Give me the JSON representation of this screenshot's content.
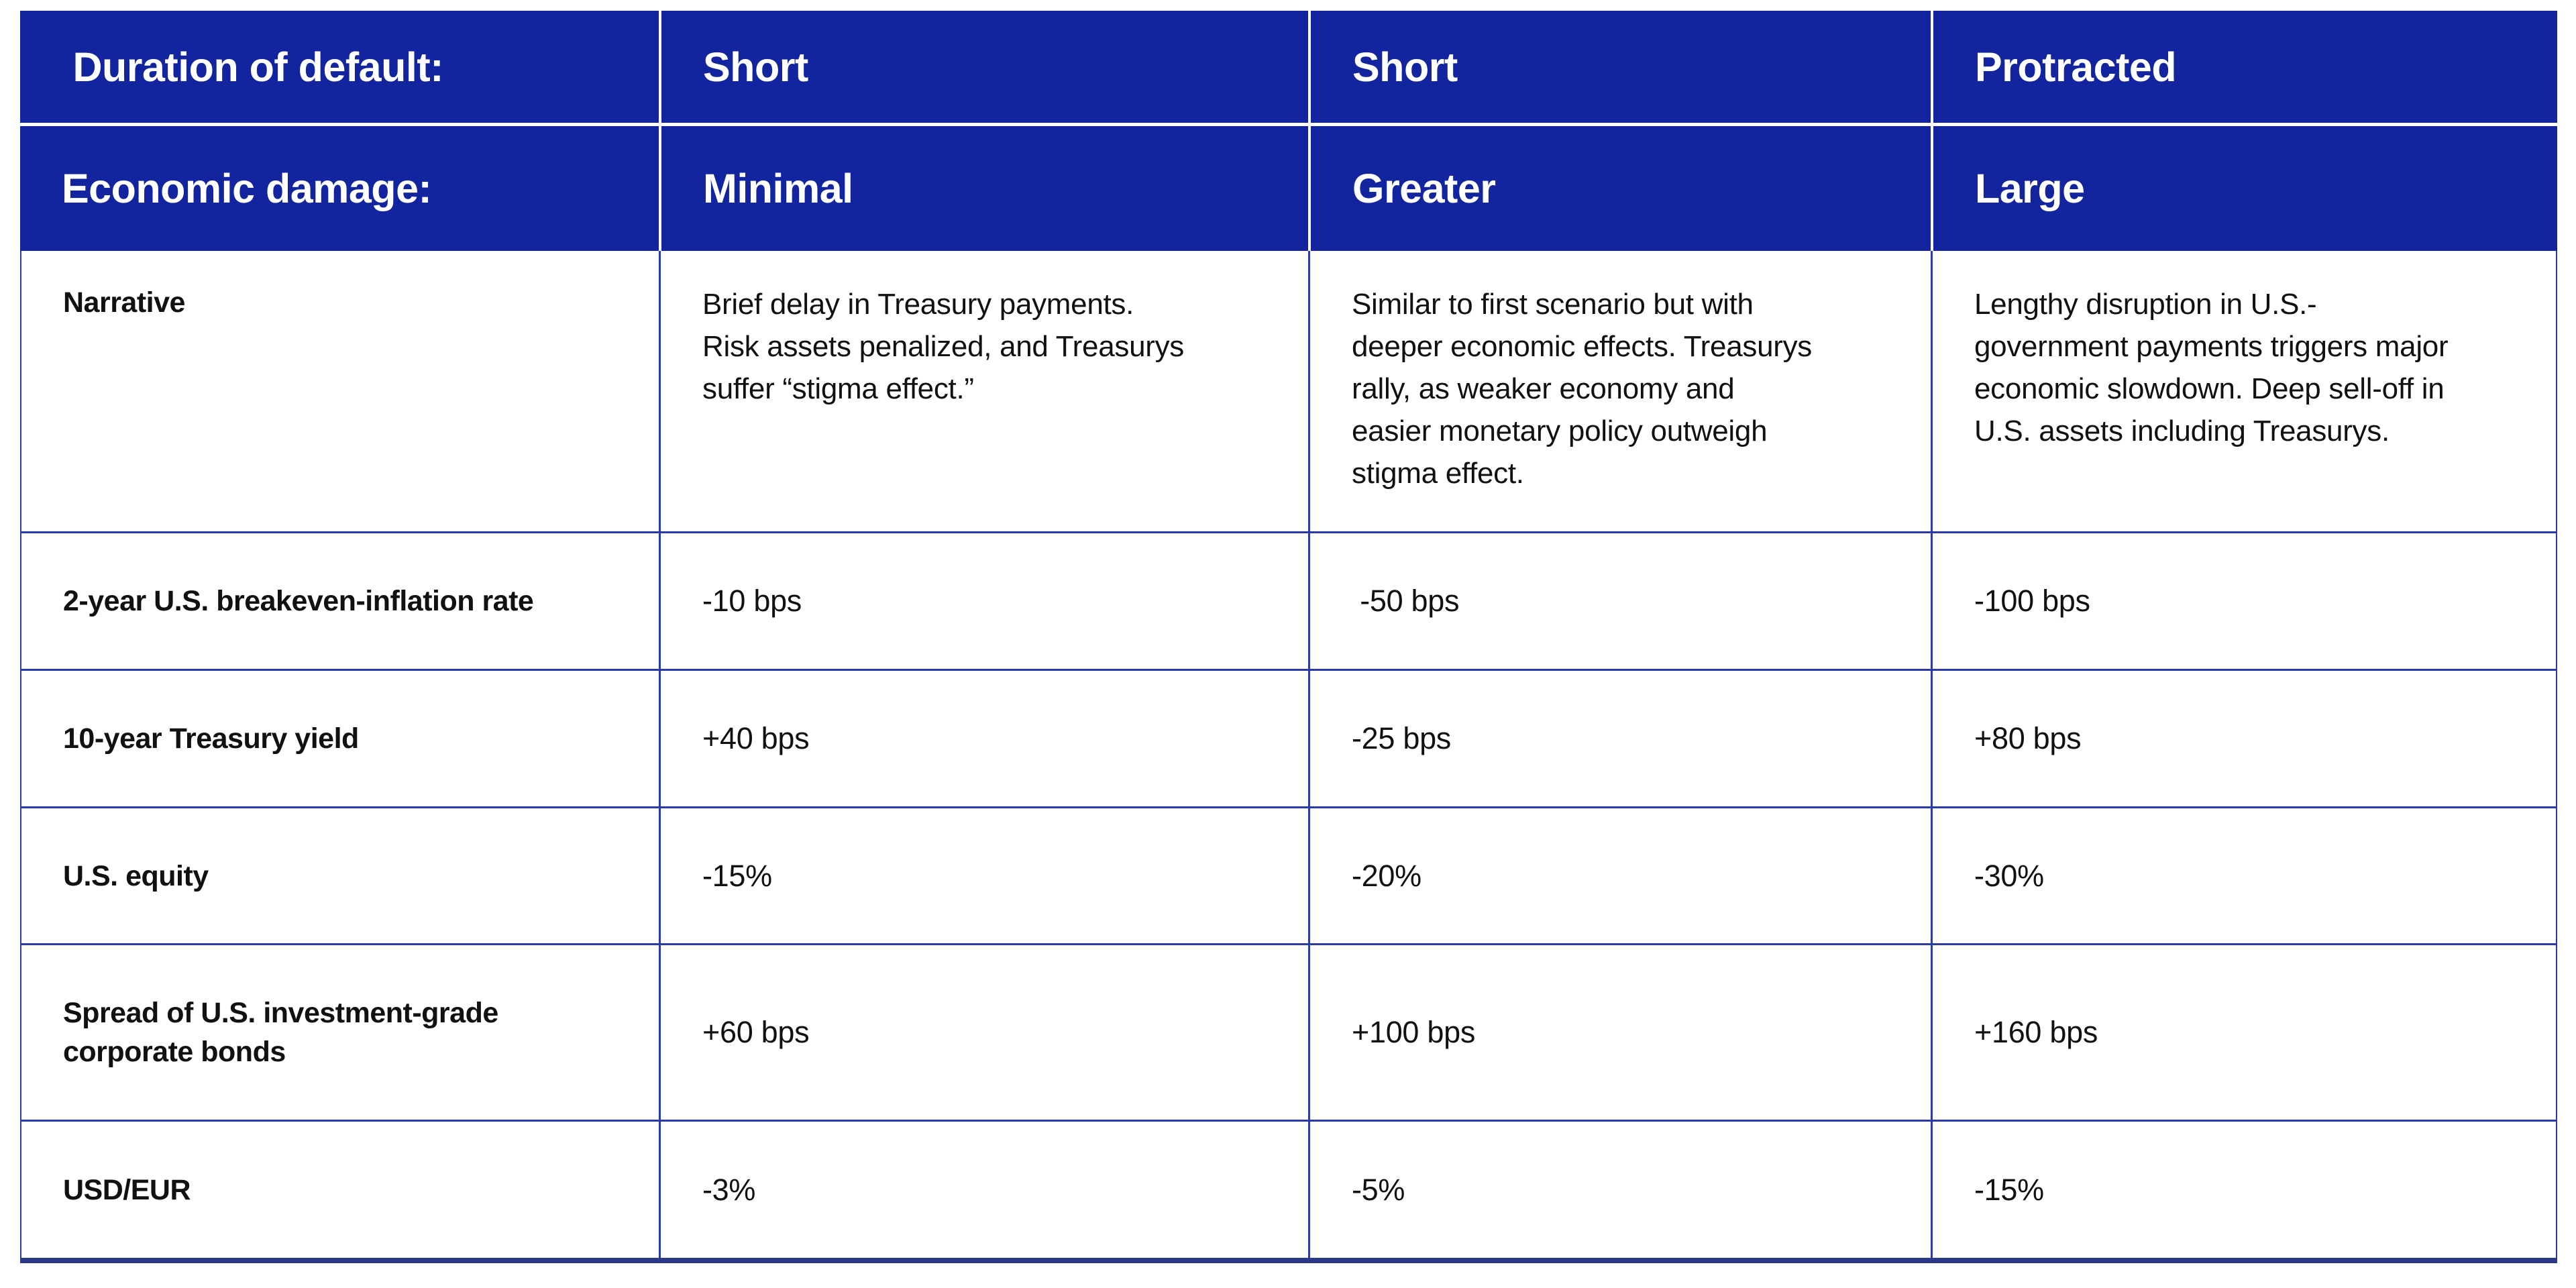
{
  "colors": {
    "header_bg": "#12259e",
    "grid_line": "#2b3aa6",
    "bottom_border": "#2b3a88",
    "header_text": "#ffffff",
    "body_text": "#111111",
    "page_bg": "#ffffff"
  },
  "chart_data": {
    "type": "table",
    "header_rows": [
      {
        "label": " Duration of default:",
        "values": [
          "Short",
          "Short",
          "Protracted"
        ]
      },
      {
        "label": "Economic damage:",
        "values": [
          "Minimal",
          "Greater",
          "Large"
        ]
      }
    ],
    "rows": [
      {
        "label": "Narrative",
        "values": [
          "Brief delay in Treasury payments.\nRisk assets penalized, and Treasurys\nsuffer “stigma effect.”",
          "Similar to first scenario but with\ndeeper economic effects. Treasurys\nrally, as weaker economy and\neasier monetary policy outweigh\nstigma effect.",
          "Lengthy disruption in U.S.-\ngovernment payments triggers major\neconomic slowdown. Deep sell-off in\nU.S. assets including Treasurys."
        ]
      },
      {
        "label": "2-year U.S. breakeven-inflation rate",
        "values": [
          "-10 bps",
          " -50 bps",
          "-100 bps"
        ]
      },
      {
        "label": "10-year Treasury yield",
        "values": [
          "+40 bps",
          "-25 bps",
          "+80 bps"
        ]
      },
      {
        "label": "U.S. equity",
        "values": [
          "-15%",
          "-20%",
          "-30%"
        ]
      },
      {
        "label": "Spread of U.S. investment-grade\ncorporate bonds",
        "values": [
          "+60 bps",
          "+100 bps",
          "+160 bps"
        ]
      },
      {
        "label": "USD/EUR",
        "values": [
          "-3%",
          "-5%",
          "-15%"
        ]
      }
    ]
  }
}
